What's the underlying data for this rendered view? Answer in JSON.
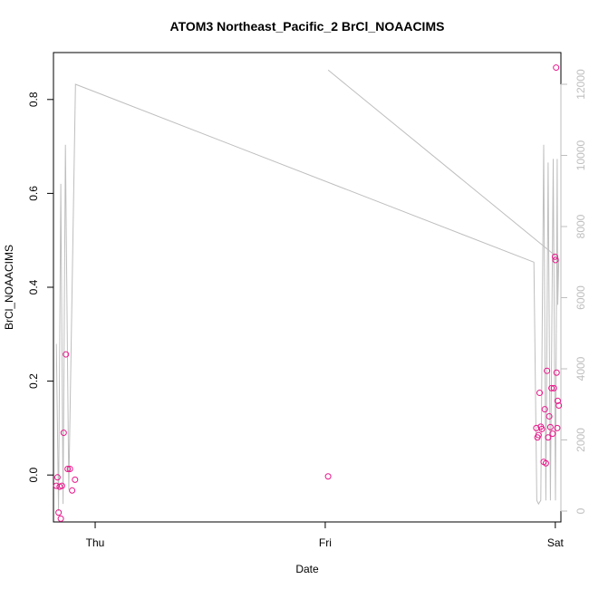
{
  "chart_data": {
    "type": "scatter",
    "title": "ATOM3 Northeast_Pacific_2 BrCl_NOAACIMS",
    "xlabel": "Date",
    "ylabel": "BrCl_NOAACIMS",
    "x_ticks": [
      "Thu",
      "Fri",
      "Sat"
    ],
    "xlim": [
      "Wed 19:39",
      "Sat 00:35"
    ],
    "y_left_ticks": [
      "0.0",
      "0.2",
      "0.4",
      "0.6",
      "0.8"
    ],
    "y_left_lim": [
      -0.1,
      0.9
    ],
    "y_right_ticks": [
      "0",
      "2000",
      "4000",
      "6000",
      "8000",
      "10000",
      "12000"
    ],
    "y_right_lim": [
      0,
      12000
    ],
    "grid": false,
    "colors": {
      "points": "#e8168a",
      "altitude_line": "#bebebe",
      "axes": "#000000",
      "right_axis": "#bebebe"
    },
    "series": [
      {
        "type": "scatter",
        "points": [
          {
            "x": "Wed 19:57",
            "y": -0.023
          },
          {
            "x": "Wed 20:04",
            "y": -0.005
          },
          {
            "x": "Wed 20:11",
            "y": -0.08
          },
          {
            "x": "Wed 20:18",
            "y": -0.025
          },
          {
            "x": "Wed 20:25",
            "y": -0.093
          },
          {
            "x": "Wed 20:32",
            "y": -0.023
          },
          {
            "x": "Wed 20:43",
            "y": 0.09
          },
          {
            "x": "Wed 20:57",
            "y": 0.257
          },
          {
            "x": "Wed 21:08",
            "y": 0.013
          },
          {
            "x": "Wed 21:22",
            "y": 0.013
          },
          {
            "x": "Wed 21:36",
            "y": -0.033
          },
          {
            "x": "Wed 21:54",
            "y": -0.01
          },
          {
            "x": "Fri 00:18",
            "y": -0.003
          },
          {
            "x": "Fri 22:01",
            "y": 0.1
          },
          {
            "x": "Fri 22:08",
            "y": 0.08
          },
          {
            "x": "Fri 22:15",
            "y": 0.085
          },
          {
            "x": "Fri 22:22",
            "y": 0.175
          },
          {
            "x": "Fri 22:29",
            "y": 0.103
          },
          {
            "x": "Fri 22:36",
            "y": 0.098
          },
          {
            "x": "Fri 22:47",
            "y": 0.028
          },
          {
            "x": "Fri 22:54",
            "y": 0.14
          },
          {
            "x": "Fri 23:01",
            "y": 0.025
          },
          {
            "x": "Fri 23:08",
            "y": 0.222
          },
          {
            "x": "Fri 23:15",
            "y": 0.08
          },
          {
            "x": "Fri 23:22",
            "y": 0.125
          },
          {
            "x": "Fri 23:29",
            "y": 0.102
          },
          {
            "x": "Fri 23:36",
            "y": 0.185
          },
          {
            "x": "Fri 23:43",
            "y": 0.088
          },
          {
            "x": "Fri 23:51",
            "y": 0.185
          },
          {
            "x": "Fri 23:58",
            "y": 0.465
          },
          {
            "x": "Sat 00:01",
            "y": 0.458
          },
          {
            "x": "Sat 00:05",
            "y": 0.868
          },
          {
            "x": "Sat 00:08",
            "y": 0.218
          },
          {
            "x": "Sat 00:12",
            "y": 0.1
          },
          {
            "x": "Sat 00:15",
            "y": 0.158
          },
          {
            "x": "Sat 00:22",
            "y": 0.148
          }
        ]
      },
      {
        "type": "line",
        "axis": "right",
        "points": [
          {
            "x": "Wed 19:57",
            "y": 4700
          },
          {
            "x": "Wed 20:11",
            "y": 0
          },
          {
            "x": "Wed 20:25",
            "y": 9200
          },
          {
            "x": "Wed 20:39",
            "y": 200
          },
          {
            "x": "Wed 20:54",
            "y": 10300
          },
          {
            "x": "Wed 21:15",
            "y": 600
          },
          {
            "x": "Wed 21:57",
            "y": 12000
          },
          {
            "x": "Fri 21:46",
            "y": 7000
          },
          {
            "x": "Fri 22:04",
            "y": 300
          },
          {
            "x": "Fri 22:15",
            "y": 200
          },
          {
            "x": "Fri 22:29",
            "y": 300
          },
          {
            "x": "Fri 22:47",
            "y": 10300
          },
          {
            "x": "Fri 23:01",
            "y": 300
          },
          {
            "x": "Fri 23:15",
            "y": 9800
          },
          {
            "x": "Fri 23:29",
            "y": 300
          },
          {
            "x": "Fri 23:47",
            "y": 9900
          },
          {
            "x": "Sat 00:01",
            "y": 300
          },
          {
            "x": "Sat 00:12",
            "y": 9900
          },
          {
            "x": "Sat 00:15",
            "y": 5800
          },
          {
            "x": "Sat 00:22",
            "y": 7100
          },
          {
            "x": "Fri 00:18",
            "y": 12400
          }
        ]
      }
    ]
  }
}
